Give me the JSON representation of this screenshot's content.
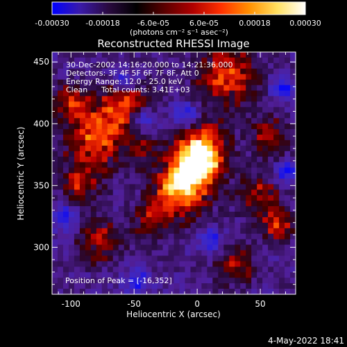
{
  "colorbar": {
    "tick_labels": [
      "-0.00030",
      "-0.00018",
      "-6.0e-05",
      "6.0e-05",
      "0.00018",
      "0.00030"
    ],
    "tick_values": [
      -0.0003,
      -0.00018,
      -6e-05,
      6e-05,
      0.00018,
      0.0003
    ],
    "range": [
      -0.0003,
      0.0003
    ],
    "units_label": "(photons cm⁻² s⁻¹ asec⁻²)",
    "colors": [
      "#0000ff",
      "#3a1aa8",
      "#2a0a40",
      "#000000",
      "#5a0000",
      "#b00000",
      "#ff3000",
      "#ff9000",
      "#ffe060",
      "#ffffff"
    ]
  },
  "title": "Reconstructed RHESSI Image",
  "info": {
    "line1": "30-Dec-2002 14:16:20.000 to 14:21:36.000",
    "line2": "Detectors: 3F 4F 5F 6F 7F 8F, Att 0",
    "line3": "Energy Range: 12.0 - 25.0 keV",
    "line4_method": "Clean",
    "line4_counts": "Total counts: 3.41E+03"
  },
  "peak_text": "Position of Peak = [-16,352]",
  "xaxis": {
    "label": "Heliocentric X (arcsec)",
    "range": [
      -115,
      78
    ],
    "ticks": [
      -100,
      -50,
      0,
      50
    ],
    "tick_labels": [
      "-100",
      "-50",
      "0",
      "50"
    ]
  },
  "yaxis": {
    "label": "Heliocentric Y (arcsec)",
    "range": [
      262,
      458
    ],
    "ticks": [
      300,
      350,
      400,
      450
    ],
    "tick_labels": [
      "300",
      "350",
      "400",
      "450"
    ]
  },
  "footer_date": "4-May-2022 18:41"
}
